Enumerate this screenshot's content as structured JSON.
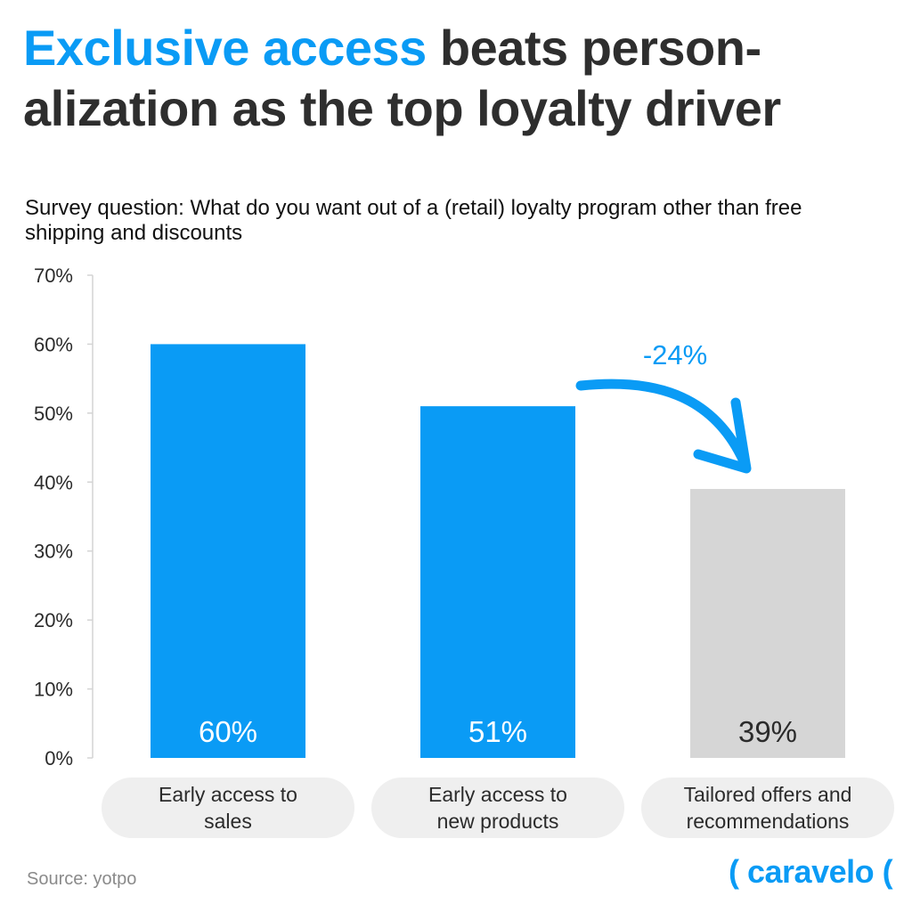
{
  "title": {
    "highlight": "Exclusive access",
    "rest_line1": " beats person-",
    "line2": "alization as the top loyalty driver"
  },
  "subtitle": "Survey question: What do you want out of a (retail) loyalty program other than free shipping and discounts",
  "chart_data": {
    "type": "bar",
    "categories": [
      [
        "Early access to",
        "sales"
      ],
      [
        "Early access to",
        "new products"
      ],
      [
        "Tailored offers and",
        "recommendations"
      ]
    ],
    "values": [
      60,
      51,
      39
    ],
    "data_labels": [
      "60%",
      "51%",
      "39%"
    ],
    "bar_colors": [
      "#0a9bf5",
      "#0a9bf5",
      "#d6d6d6"
    ],
    "data_label_colors": [
      "#ffffff",
      "#ffffff",
      "#2b2b2b"
    ],
    "ylim": [
      0,
      70
    ],
    "yticks": [
      0,
      10,
      20,
      30,
      40,
      50,
      60,
      70
    ],
    "ytick_labels": [
      "0%",
      "10%",
      "20%",
      "30%",
      "40%",
      "50%",
      "60%",
      "70%"
    ],
    "grid": false,
    "annotation": {
      "text": "-24%",
      "from_category": 1,
      "to_category": 2,
      "color": "#0a9bf5"
    }
  },
  "footer": {
    "source": "Source: yotpo",
    "brand": "( caravelo ("
  }
}
